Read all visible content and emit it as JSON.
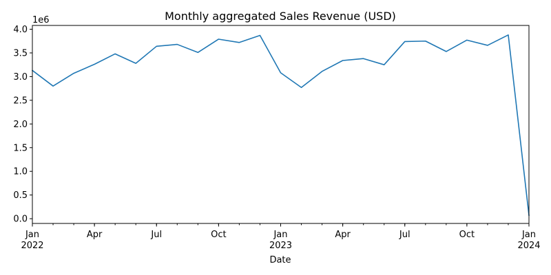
{
  "chart_data": {
    "type": "line",
    "title": "Monthly aggregated Sales Revenue (USD)",
    "xlabel": "Date",
    "ylabel": "",
    "y_offset_label": "1e6",
    "y_scale": 1000000,
    "ylim": [
      -0.1,
      4.08
    ],
    "xlim": [
      "2022-01",
      "2024-01"
    ],
    "y_ticks": [
      0.0,
      0.5,
      1.0,
      1.5,
      2.0,
      2.5,
      3.0,
      3.5,
      4.0
    ],
    "y_tick_labels": [
      "0.0",
      "0.5",
      "1.0",
      "1.5",
      "2.0",
      "2.5",
      "3.0",
      "3.5",
      "4.0"
    ],
    "x_major_ticks": [
      {
        "x": "2022-01",
        "label": "Jan",
        "sublabel": "2022"
      },
      {
        "x": "2022-04",
        "label": "Apr",
        "sublabel": ""
      },
      {
        "x": "2022-07",
        "label": "Jul",
        "sublabel": ""
      },
      {
        "x": "2022-10",
        "label": "Oct",
        "sublabel": ""
      },
      {
        "x": "2023-01",
        "label": "Jan",
        "sublabel": "2023"
      },
      {
        "x": "2023-04",
        "label": "Apr",
        "sublabel": ""
      },
      {
        "x": "2023-07",
        "label": "Jul",
        "sublabel": ""
      },
      {
        "x": "2023-10",
        "label": "Oct",
        "sublabel": ""
      },
      {
        "x": "2024-01",
        "label": "Jan",
        "sublabel": "2024"
      }
    ],
    "grid": false,
    "series": [
      {
        "color": "#1f77b4",
        "x": [
          "2022-01",
          "2022-02",
          "2022-03",
          "2022-04",
          "2022-05",
          "2022-06",
          "2022-07",
          "2022-08",
          "2022-09",
          "2022-10",
          "2022-11",
          "2022-12",
          "2023-01",
          "2023-02",
          "2023-03",
          "2023-04",
          "2023-05",
          "2023-06",
          "2023-07",
          "2023-08",
          "2023-09",
          "2023-10",
          "2023-11",
          "2023-12",
          "2024-01"
        ],
        "y": [
          3.13,
          2.8,
          3.07,
          3.26,
          3.48,
          3.28,
          3.64,
          3.68,
          3.51,
          3.79,
          3.72,
          3.87,
          3.08,
          2.77,
          3.11,
          3.34,
          3.38,
          3.25,
          3.74,
          3.75,
          3.53,
          3.77,
          3.66,
          3.88,
          0.07
        ]
      }
    ]
  }
}
